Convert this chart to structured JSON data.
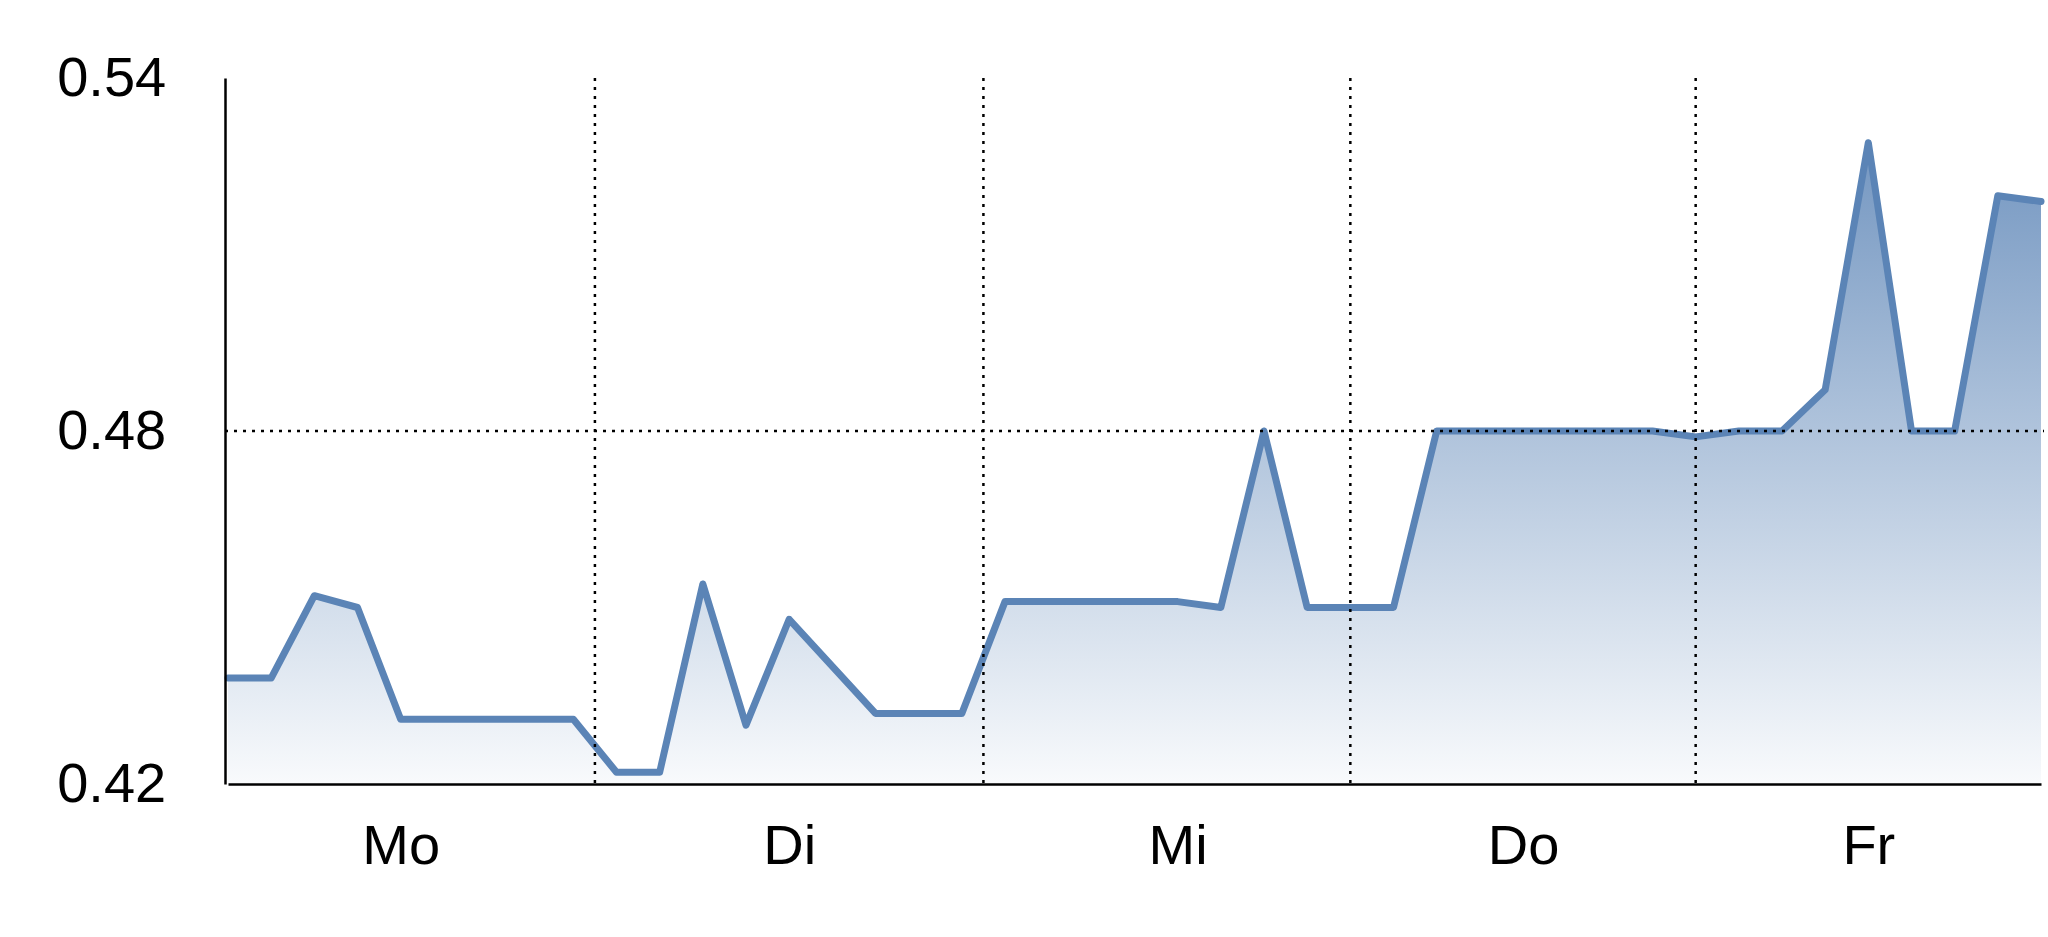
{
  "chart_data": {
    "type": "area",
    "categories": [
      null,
      null,
      null,
      null,
      "Mo",
      null,
      null,
      null,
      null,
      null,
      null,
      null,
      null,
      "Di",
      null,
      null,
      null,
      null,
      null,
      null,
      null,
      null,
      "Mi",
      null,
      null,
      null,
      null,
      null,
      null,
      null,
      "Do",
      null,
      null,
      null,
      null,
      null,
      null,
      null,
      "Fr",
      null,
      null,
      null,
      null
    ],
    "series": [
      {
        "color": "#5b84b6",
        "values": [
          0.438,
          0.438,
          0.452,
          0.45,
          0.431,
          0.431,
          0.431,
          0.431,
          0.431,
          0.422,
          0.422,
          0.454,
          0.43,
          0.448,
          0.44,
          0.432,
          0.432,
          0.432,
          0.451,
          0.451,
          0.451,
          0.451,
          0.451,
          0.45,
          0.48,
          0.45,
          0.45,
          0.45,
          0.48,
          0.48,
          0.48,
          0.48,
          0.48,
          0.48,
          0.479,
          0.48,
          0.48,
          0.487,
          0.529,
          0.48,
          0.48,
          0.52,
          0.519
        ]
      }
    ],
    "ylim": [
      0.42,
      0.54
    ],
    "yticks": [
      0.42,
      0.48,
      0.54
    ],
    "ref_lines": [
      {
        "axis": "y",
        "value": 0.48,
        "color": "#000000",
        "line_style": "dotted"
      }
    ],
    "grid": "x",
    "marker": "none",
    "line_style": "solid"
  }
}
